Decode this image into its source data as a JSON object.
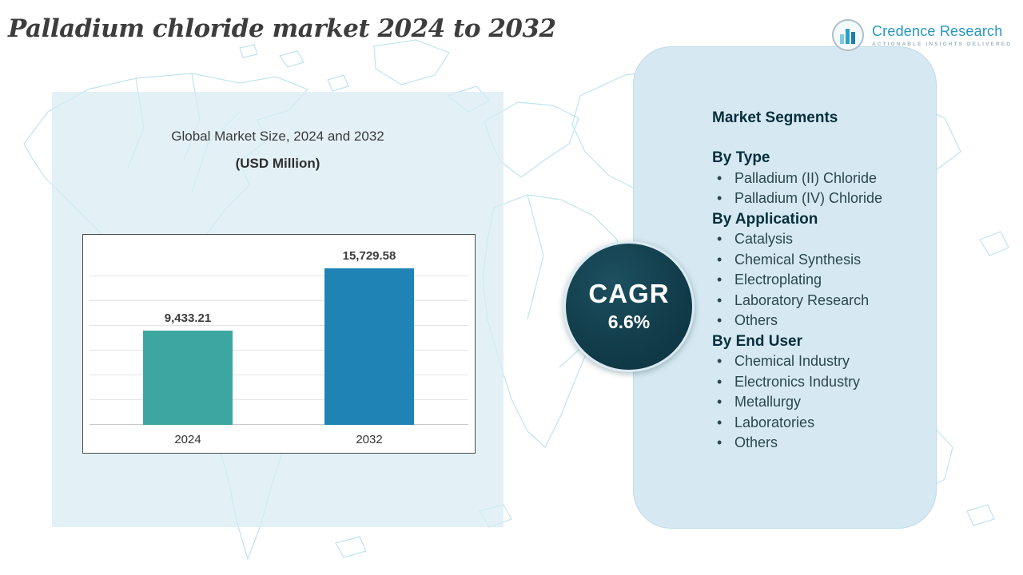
{
  "title": "Palladium chloride market 2024 to 2032",
  "logo": {
    "name": "Credence Research",
    "tagline": "ACTIONABLE INSIGHTS DELIVERED"
  },
  "chart_data": {
    "type": "bar",
    "title": "Global Market Size, 2024 and 2032",
    "subtitle": "(USD Million)",
    "categories": [
      "2024",
      "2032"
    ],
    "values": [
      9433.21,
      15729.58
    ],
    "value_labels": [
      "9,433.21",
      "15,729.58"
    ],
    "bar_colors": [
      "#3EA6A0",
      "#2083B5"
    ],
    "xlabel": "",
    "ylabel": "",
    "ylim": [
      0,
      16000
    ],
    "grid": true,
    "legend": false
  },
  "cagr": {
    "label": "CAGR",
    "value": "6.6%"
  },
  "segments": {
    "heading": "Market Segments",
    "groups": [
      {
        "label": "By Type",
        "items": [
          "Palladium (II) Chloride",
          "Palladium (IV) Chloride"
        ]
      },
      {
        "label": "By Application",
        "items": [
          "Catalysis",
          "Chemical Synthesis",
          "Electroplating",
          "Laboratory Research",
          "Others"
        ]
      },
      {
        "label": "By End User",
        "items": [
          "Chemical Industry",
          "Electronics Industry",
          "Metallurgy",
          "Laboratories",
          "Others"
        ]
      }
    ]
  },
  "colors": {
    "bar_2024": "#3EA6A0",
    "bar_2032": "#2083B5",
    "cagr_circle": "#123D4B",
    "panel_bg": "#D6E9F2",
    "map_line": "#B9E2EC",
    "brand_blue": "#2596BE"
  }
}
